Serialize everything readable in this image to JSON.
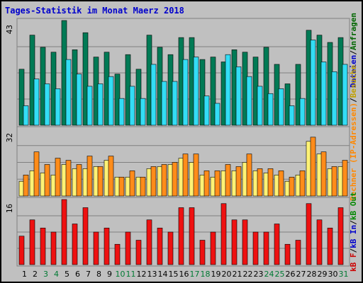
{
  "window": {
    "title": "Tages-Statistik im Monat Maerz 2018"
  },
  "legend_top": {
    "items": [
      {
        "label": "Dateien",
        "color": "#0000cc"
      },
      {
        "label": "Anfragen",
        "color": "#006600"
      }
    ],
    "separator": "/"
  },
  "legend_mid": {
    "items": [
      {
        "label": "Rechner (IP-Adressen)",
        "color": "#ff8800"
      },
      {
        "label": "Besuche",
        "color": "#c0a000"
      }
    ],
    "separator": "/"
  },
  "legend_bottom": {
    "items": [
      {
        "label": "kB F",
        "color": "#cc0000"
      },
      {
        "label": "kB In",
        "color": "#0000cc"
      },
      {
        "label": "kB Out",
        "color": "#008800"
      }
    ],
    "separator": "/"
  },
  "colors": {
    "anfragen": "#007a55",
    "dateien": "#33ddf5",
    "besuche": "#fff275",
    "rechner": "#ff8c1a",
    "kbf": "#ee1111",
    "background": "#c0c0c0",
    "weekend_label": "#007a33",
    "weekday_label": "#000000",
    "gridline": "#808080"
  },
  "chart_data": [
    {
      "type": "bar",
      "title": "Tages-Statistik im Monat Maerz 2018",
      "ylabel": "43",
      "ylim": [
        0,
        43
      ],
      "categories": [
        "1",
        "2",
        "3",
        "4",
        "5",
        "6",
        "7",
        "8",
        "9",
        "10",
        "11",
        "12",
        "13",
        "14",
        "15",
        "16",
        "17",
        "18",
        "19",
        "20",
        "21",
        "22",
        "23",
        "24",
        "25",
        "26",
        "27",
        "28",
        "29",
        "30",
        "31"
      ],
      "series": [
        {
          "name": "Anfragen",
          "values": [
            23,
            37,
            32,
            30,
            43,
            31,
            38,
            28,
            30,
            21,
            29,
            23,
            37,
            32,
            29,
            36,
            36,
            27,
            28,
            26,
            31,
            30,
            28,
            32,
            25,
            17,
            25,
            39,
            37,
            34,
            36
          ]
        },
        {
          "name": "Dateien",
          "values": [
            8,
            19,
            17,
            15,
            27,
            21,
            16,
            17,
            20,
            11,
            16,
            11,
            25,
            18,
            18,
            27,
            28,
            12,
            9,
            29,
            24,
            20,
            16,
            13,
            15,
            8,
            11,
            35,
            26,
            22,
            25
          ]
        }
      ]
    },
    {
      "type": "bar",
      "ylabel": "32",
      "ylim": [
        0,
        32
      ],
      "categories": [
        "1",
        "2",
        "3",
        "4",
        "5",
        "6",
        "7",
        "8",
        "9",
        "10",
        "11",
        "12",
        "13",
        "14",
        "15",
        "16",
        "17",
        "18",
        "19",
        "20",
        "21",
        "22",
        "23",
        "24",
        "25",
        "26",
        "27",
        "28",
        "29",
        "30",
        "31"
      ],
      "series": [
        {
          "name": "Besuche",
          "values": [
            7,
            12,
            11,
            10,
            15,
            13,
            13,
            14,
            17,
            9,
            9,
            9,
            13,
            14,
            15,
            18,
            16,
            10,
            9,
            12,
            12,
            16,
            12,
            11,
            10,
            7,
            10,
            26,
            20,
            13,
            14
          ]
        },
        {
          "name": "Rechner",
          "values": [
            10,
            21,
            15,
            18,
            17,
            15,
            19,
            14,
            19,
            9,
            12,
            9,
            14,
            15,
            16,
            20,
            20,
            12,
            12,
            15,
            14,
            20,
            13,
            13,
            12,
            9,
            12,
            28,
            21,
            14,
            17
          ]
        }
      ]
    },
    {
      "type": "bar",
      "ylabel": "16",
      "ylim": [
        0,
        16
      ],
      "categories": [
        "1",
        "2",
        "3",
        "4",
        "5",
        "6",
        "7",
        "8",
        "9",
        "10",
        "11",
        "12",
        "13",
        "14",
        "15",
        "16",
        "17",
        "18",
        "19",
        "20",
        "21",
        "22",
        "23",
        "24",
        "25",
        "26",
        "27",
        "28",
        "29",
        "30",
        "31"
      ],
      "series": [
        {
          "name": "kB F",
          "values": [
            7,
            11,
            9,
            8,
            16,
            10,
            14,
            8,
            9,
            5,
            8,
            6,
            11,
            9,
            8,
            14,
            14,
            6,
            8,
            15,
            11,
            11,
            8,
            8,
            10,
            5,
            6,
            15,
            11,
            9,
            14
          ]
        }
      ]
    }
  ],
  "weekend_days": [
    "3",
    "4",
    "10",
    "11",
    "17",
    "18",
    "24",
    "25",
    "31"
  ]
}
